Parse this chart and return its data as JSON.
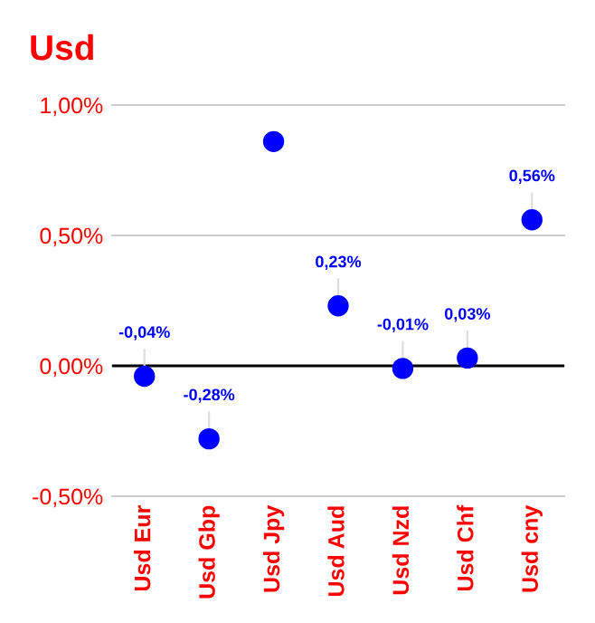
{
  "chart_data": {
    "type": "scatter",
    "title": "Usd",
    "categories": [
      "Usd Eur",
      "Usd Gbp",
      "Usd Jpy",
      "Usd Aud",
      "Usd Nzd",
      "Usd Chf",
      "Usd cny"
    ],
    "series": [
      {
        "color": "#0000ff",
        "values": [
          -0.04,
          -0.28,
          0.86,
          0.23,
          -0.01,
          0.03,
          0.56
        ],
        "value_labels": [
          "-0,04%",
          "-0,28%",
          null,
          "0,23%",
          "-0,01%",
          "0,03%",
          "0,56%"
        ]
      }
    ],
    "ylim": [
      -0.5,
      1.0
    ],
    "yticks": [
      {
        "value": -0.5,
        "label": "-0,50%"
      },
      {
        "value": 0,
        "label": "0,00%"
      },
      {
        "value": 0.5,
        "label": "0,50%"
      },
      {
        "value": 1.0,
        "label": "1,00%"
      }
    ],
    "ref_lines": [
      {
        "axis": "y",
        "value": 0,
        "color": "#000000"
      }
    ],
    "grid": "y",
    "marker": "circle",
    "legend": false
  }
}
